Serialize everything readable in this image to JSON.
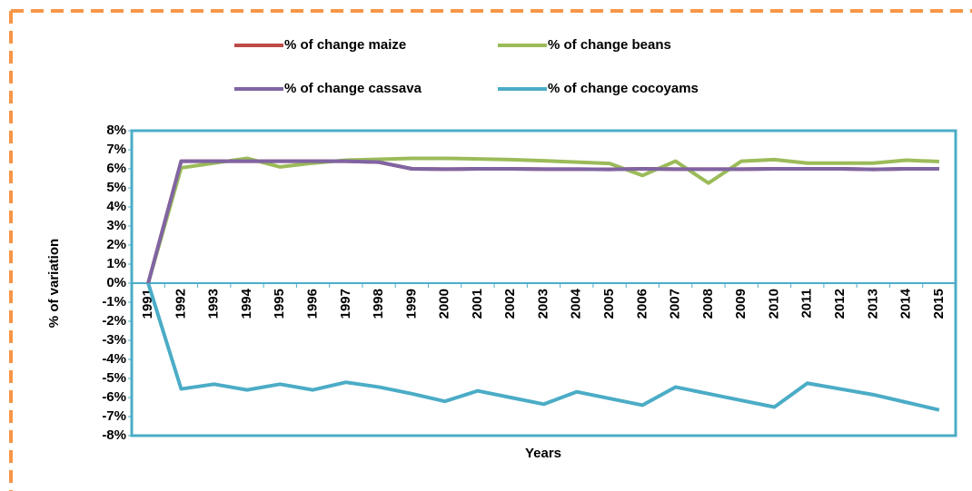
{
  "chart_data": {
    "type": "line",
    "y_label": "% of variation",
    "x_label": "Years",
    "legend": "top",
    "categories": [
      "1991",
      "1992",
      "1993",
      "1994",
      "1995",
      "1996",
      "1997",
      "1998",
      "1999",
      "2000",
      "2001",
      "2002",
      "2003",
      "2004",
      "2005",
      "2006",
      "2007",
      "2008",
      "2009",
      "2010",
      "2011",
      "2012",
      "2013",
      "2014",
      "2015"
    ],
    "series": [
      {
        "name": "% of change maize",
        "color": "#be4b48",
        "values": [
          0,
          6.4,
          6.4,
          6.4,
          6.4,
          6.4,
          6.4,
          6.35,
          6.0,
          5.98,
          6.0,
          6.0,
          5.98,
          5.98,
          5.97,
          6.0,
          5.98,
          5.98,
          5.98,
          6.0,
          6.0,
          6.0,
          5.97,
          6.0,
          6.0
        ]
      },
      {
        "name": "% of change beans",
        "color": "#9bbb59",
        "values": [
          0,
          6.05,
          6.3,
          6.55,
          6.1,
          6.3,
          6.45,
          6.5,
          6.55,
          6.55,
          6.52,
          6.48,
          6.42,
          6.35,
          6.28,
          5.65,
          6.4,
          5.25,
          6.4,
          6.48,
          6.3,
          6.3,
          6.3,
          6.45,
          6.38
        ]
      },
      {
        "name": "% of change cassava",
        "color": "#8064a2",
        "values": [
          0,
          6.4,
          6.4,
          6.4,
          6.4,
          6.4,
          6.4,
          6.35,
          6.0,
          5.98,
          6.0,
          6.0,
          5.98,
          5.98,
          5.97,
          6.0,
          5.98,
          5.98,
          5.98,
          6.0,
          6.0,
          6.0,
          5.97,
          6.0,
          6.0
        ]
      },
      {
        "name": "% of change cocoyams",
        "color": "#4bacc6",
        "values": [
          0,
          -5.55,
          -5.3,
          -5.6,
          -5.3,
          -5.6,
          -5.2,
          -5.45,
          -5.8,
          -6.2,
          -5.65,
          -6.0,
          -6.35,
          -5.7,
          -6.05,
          -6.4,
          -5.45,
          -5.8,
          -6.15,
          -6.5,
          -5.25,
          -5.55,
          -5.85,
          -6.25,
          -6.65
        ]
      }
    ],
    "ylim": [
      -8,
      8
    ],
    "yticks": [
      {
        "value": -8,
        "label": "-8%"
      },
      {
        "value": -7,
        "label": "-7%"
      },
      {
        "value": -6,
        "label": "-6%"
      },
      {
        "value": -5,
        "label": "-5%"
      },
      {
        "value": -4,
        "label": "-4%"
      },
      {
        "value": -3,
        "label": "-3%"
      },
      {
        "value": -2,
        "label": "-2%"
      },
      {
        "value": -1,
        "label": "-1%"
      },
      {
        "value": 0,
        "label": "0%"
      },
      {
        "value": 1,
        "label": "1%"
      },
      {
        "value": 2,
        "label": "2%"
      },
      {
        "value": 3,
        "label": "3%"
      },
      {
        "value": 4,
        "label": "4%"
      },
      {
        "value": 5,
        "label": "5%"
      },
      {
        "value": 6,
        "label": "6%"
      },
      {
        "value": 7,
        "label": "7%"
      },
      {
        "value": 8,
        "label": "8%"
      }
    ]
  }
}
